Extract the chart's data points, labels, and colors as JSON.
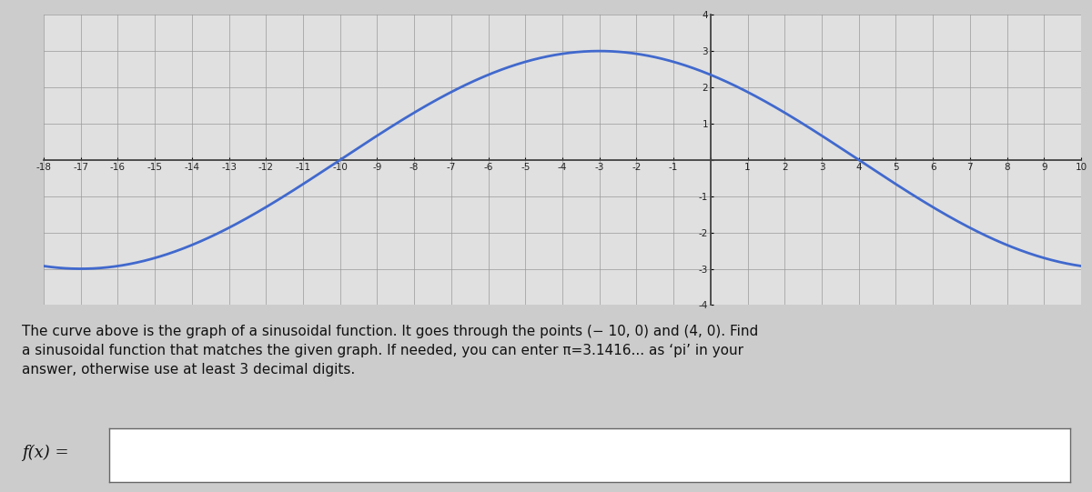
{
  "xmin": -18,
  "xmax": 10,
  "ymin": -4,
  "ymax": 4,
  "amplitude": 3,
  "period": 28,
  "zero_start": -10,
  "sign": 1,
  "curve_color": "#4169cd",
  "curve_linewidth": 2.0,
  "grid_major_color": "#999999",
  "grid_minor_color": "#cccccc",
  "axis_color": "#444444",
  "background_color": "#cccccc",
  "plot_bg_color": "#e0e0e0",
  "outer_bg_color": "#cccccc",
  "text_line1": "The curve above is the graph of a sinusoidal function. It goes through the points − 10, 0) and (4, 0). Find",
  "text_line2": "a sinusoidal function that matches the given graph. If needed, you can enter π=3.1416... as ‘pi’ in your",
  "text_line3": "answer, otherwise use at least 3 decimal digits.",
  "fx_label": "f(x) =",
  "tick_fontsize": 7.5,
  "text_fontsize": 11,
  "fx_fontsize": 13
}
